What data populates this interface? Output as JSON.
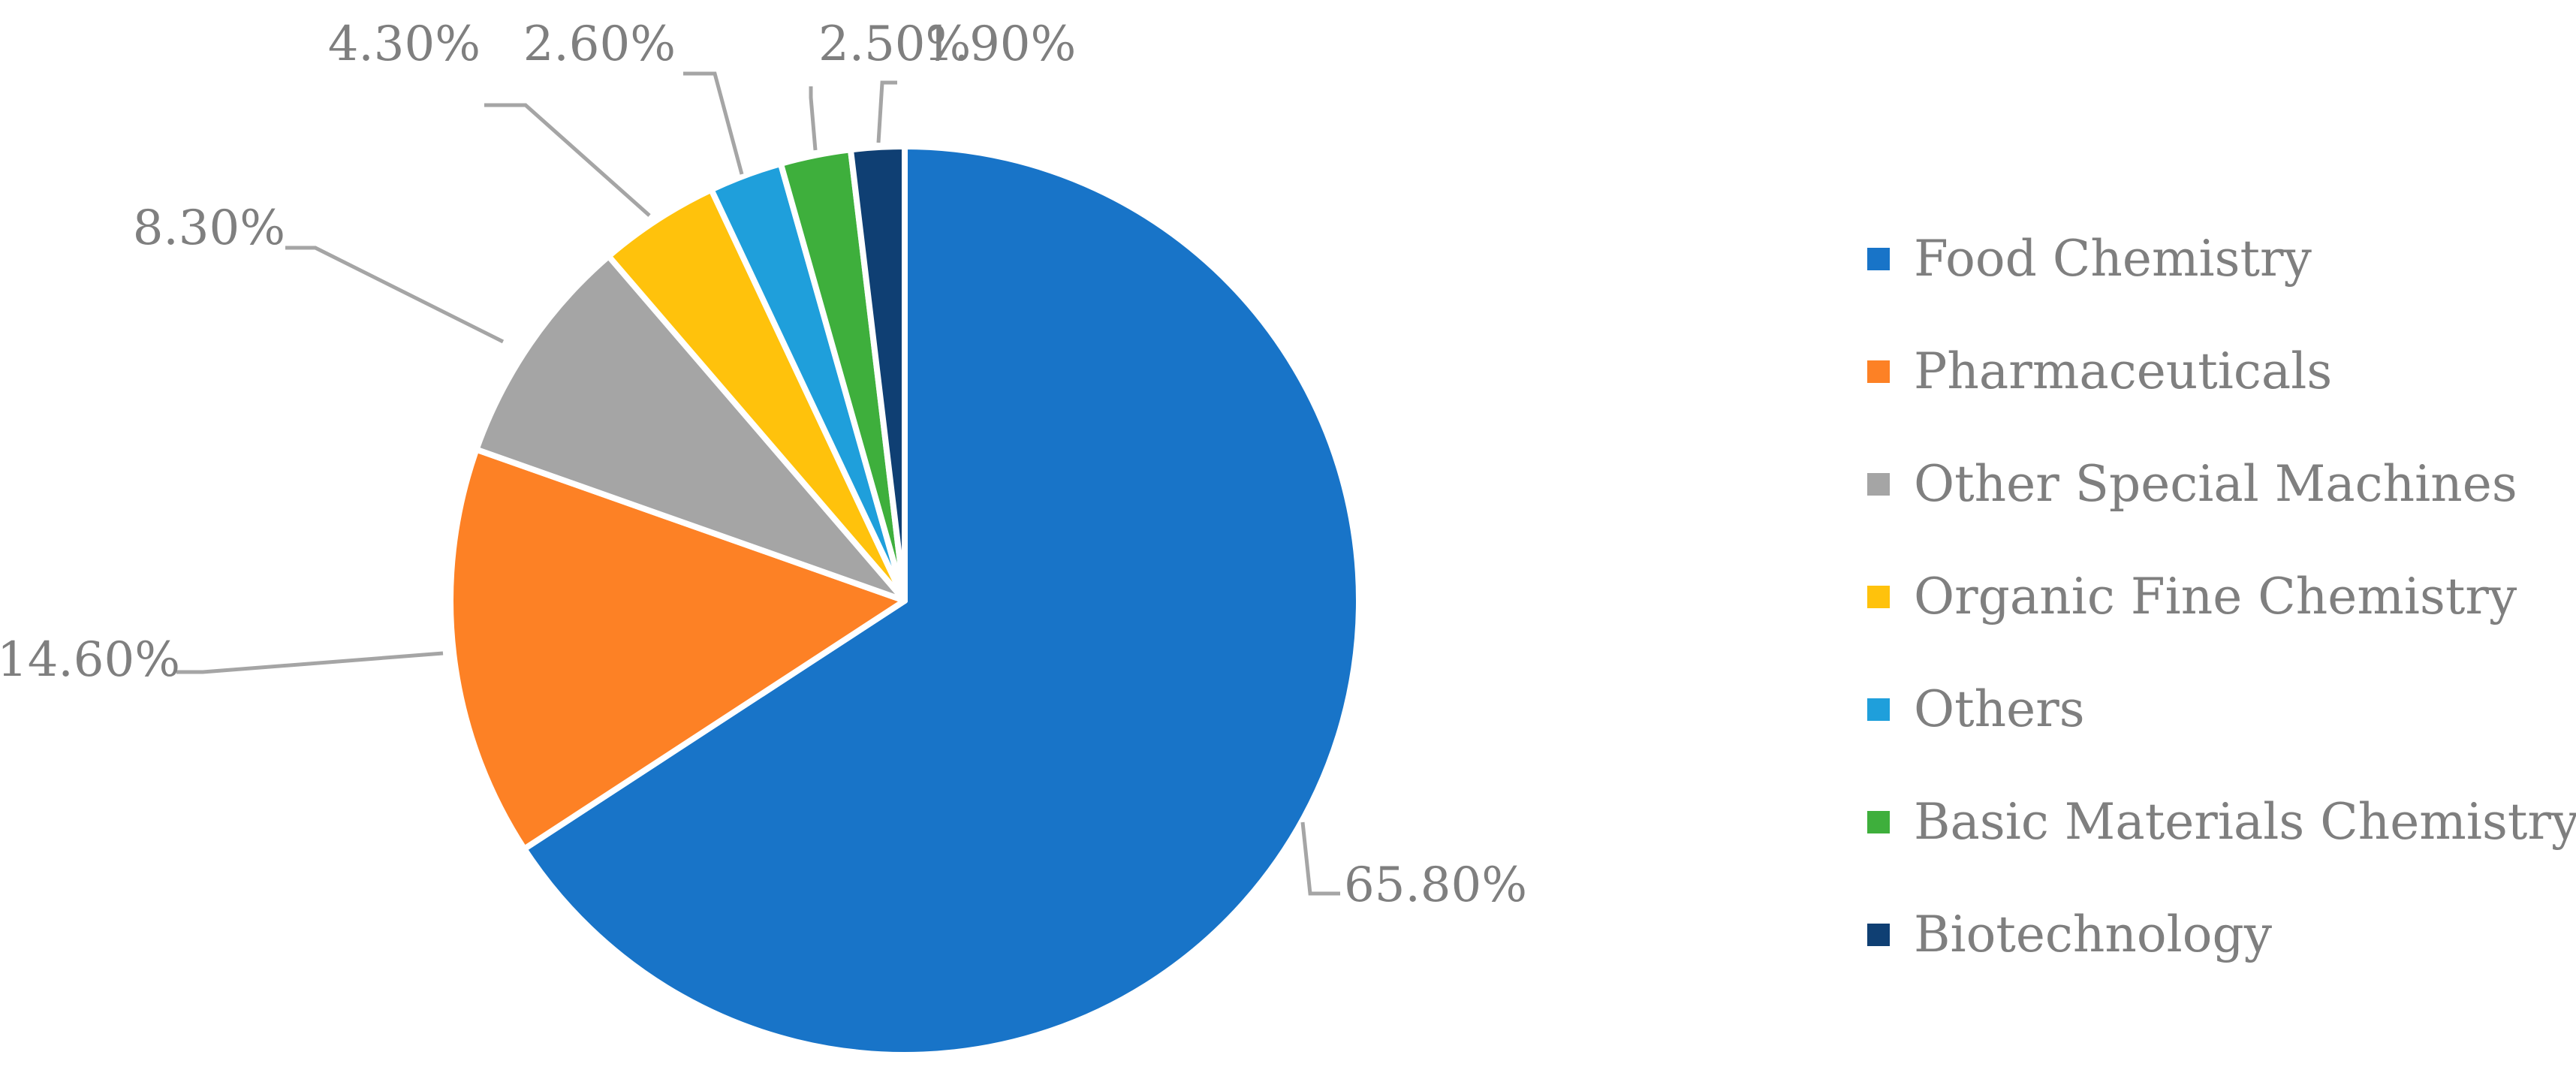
{
  "chart_data": {
    "type": "pie",
    "title": "",
    "start_angle_deg": 0,
    "direction": "clockwise",
    "legend_position": "right",
    "slices": [
      {
        "name": "Food Chemistry",
        "value": 65.8,
        "label": "65.80%",
        "color": "#1874C8"
      },
      {
        "name": "Pharmaceuticals",
        "value": 14.6,
        "label": "14.60%",
        "color": "#FD8125"
      },
      {
        "name": "Other Special Machines",
        "value": 8.3,
        "label": "8.30%",
        "color": "#A5A5A5"
      },
      {
        "name": "Organic Fine Chemistry",
        "value": 4.3,
        "label": "4.30%",
        "color": "#FFC20C"
      },
      {
        "name": "Others",
        "value": 2.6,
        "label": "2.60%",
        "color": "#1F9FDB"
      },
      {
        "name": "Basic Materials Chemistry",
        "value": 2.5,
        "label": "2.50%",
        "color": "#3EAF3C"
      },
      {
        "name": "Biotechnology",
        "value": 1.9,
        "label": "1.90%",
        "color": "#0F3F73"
      }
    ],
    "leader_line_color": "#A5A5A5"
  }
}
